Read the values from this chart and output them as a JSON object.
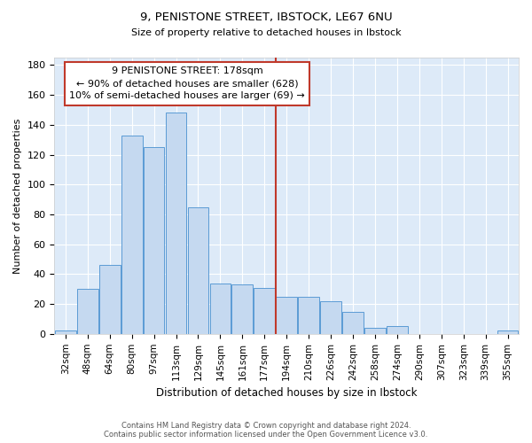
{
  "title1": "9, PENISTONE STREET, IBSTOCK, LE67 6NU",
  "title2": "Size of property relative to detached houses in Ibstock",
  "xlabel": "Distribution of detached houses by size in Ibstock",
  "ylabel": "Number of detached properties",
  "categories": [
    "32sqm",
    "48sqm",
    "64sqm",
    "80sqm",
    "97sqm",
    "113sqm",
    "129sqm",
    "145sqm",
    "161sqm",
    "177sqm",
    "194sqm",
    "210sqm",
    "226sqm",
    "242sqm",
    "258sqm",
    "274sqm",
    "290sqm",
    "307sqm",
    "323sqm",
    "339sqm",
    "355sqm"
  ],
  "values": [
    2,
    30,
    46,
    133,
    125,
    148,
    85,
    34,
    33,
    31,
    25,
    25,
    22,
    15,
    4,
    5,
    0,
    0,
    0,
    0,
    2
  ],
  "bar_color": "#c5d9f0",
  "bar_edge_color": "#5b9bd5",
  "vline_color": "#c0392b",
  "annotation_title": "9 PENISTONE STREET: 178sqm",
  "annotation_line1": "← 90% of detached houses are smaller (628)",
  "annotation_line2": "10% of semi-detached houses are larger (69) →",
  "annotation_box_color": "#c0392b",
  "footer1": "Contains HM Land Registry data © Crown copyright and database right 2024.",
  "footer2": "Contains public sector information licensed under the Open Government Licence v3.0.",
  "bg_color": "#ddeaf8",
  "ylim": [
    0,
    185
  ],
  "yticks": [
    0,
    20,
    40,
    60,
    80,
    100,
    120,
    140,
    160,
    180
  ]
}
